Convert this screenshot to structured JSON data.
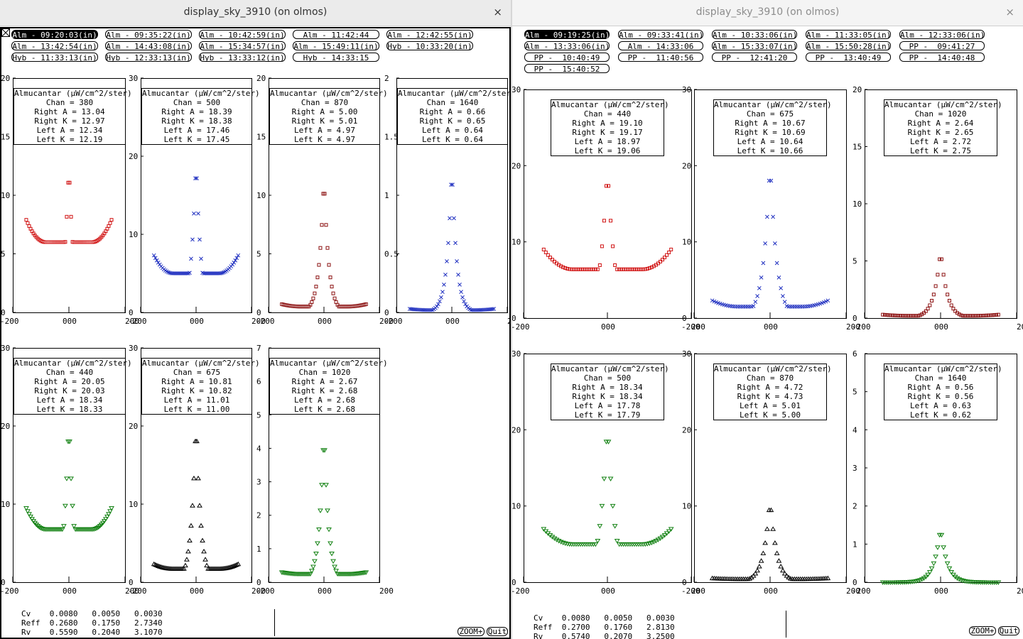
{
  "windows": [
    {
      "title": "display_sky_3910 (on olmos)",
      "close_label": "×",
      "time_buttons": [
        {
          "label": "Alm - 09:20:03(in)",
          "selected": true
        },
        {
          "label": "Alm - 09:35:22(in)"
        },
        {
          "label": "Alm - 10:42:59(in)"
        },
        {
          "label": "Alm - 11:42:44"
        },
        {
          "label": "Alm - 12:42:55(in)"
        },
        {
          "label": "Alm - 13:42:54(in)"
        },
        {
          "label": "Alm - 14:43:08(in)"
        },
        {
          "label": "Alm - 15:34:57(in)"
        },
        {
          "label": "Alm - 15:49:11(in)"
        },
        {
          "label": "Hyb - 10:33:20(in)"
        },
        {
          "label": "Hyb - 11:33:13(in)"
        },
        {
          "label": "Hyb - 12:33:13(in)"
        },
        {
          "label": "Hyb - 13:33:12(in)"
        },
        {
          "label": "Hyb - 14:33:15"
        }
      ],
      "plots": [
        {
          "chan": "380",
          "right_a": "13.04",
          "right_k": "12.97",
          "left_a": "12.34",
          "left_k": "12.19",
          "yticks": [
            "0",
            "5",
            "10",
            "15",
            "20"
          ],
          "ymax": 20,
          "peak": 12.9,
          "edge": 7.9,
          "trough": 6.0,
          "marker": "square",
          "color": "#d01010",
          "info_title": "Almucantar (µW/cm^2/ster)"
        },
        {
          "chan": "500",
          "right_a": "18.39",
          "right_k": "18.38",
          "left_a": "17.46",
          "left_k": "17.45",
          "yticks": [
            "0",
            "10",
            "20",
            "30"
          ],
          "ymax": 30,
          "peak": 20.0,
          "edge": 7.3,
          "trough": 5.0,
          "marker": "x",
          "color": "#2030c0",
          "info_title": "Almucantar (µW/cm^2/ster)"
        },
        {
          "chan": "870",
          "right_a": "5.00",
          "right_k": "5.01",
          "left_a": "4.97",
          "left_k": "4.97",
          "yticks": [
            "0",
            "5",
            "10",
            "15",
            "20"
          ],
          "ymax": 20,
          "peak": 11.8,
          "edge": 0.7,
          "trough": 0.5,
          "marker": "square",
          "color": "#8b1010",
          "info_title": "Almucantar (µW/cm^2/ster)"
        },
        {
          "chan": "1640",
          "right_a": "0.66",
          "right_k": "0.65",
          "left_a": "0.64",
          "left_k": "0.64",
          "yticks": [
            "0",
            "0.5",
            "1",
            "1.5",
            "2"
          ],
          "ymax": 2,
          "peak": 1.27,
          "edge": 0.03,
          "trough": 0.02,
          "marker": "x",
          "color": "#2030c0",
          "info_title": "Almucantar (µW/cm^2/ster)"
        },
        {
          "chan": "440",
          "right_a": "20.05",
          "right_k": "20.03",
          "left_a": "18.34",
          "left_k": "18.33",
          "yticks": [
            "0",
            "10",
            "20",
            "30"
          ],
          "ymax": 30,
          "peak": 21.0,
          "edge": 9.5,
          "trough": 6.8,
          "marker": "tri_down",
          "color": "#108010",
          "info_title": "Almucantar (µW/cm^2/ster)"
        },
        {
          "chan": "675",
          "right_a": "10.81",
          "right_k": "10.82",
          "left_a": "11.01",
          "left_k": "11.00",
          "yticks": [
            "0",
            "10",
            "20",
            "30"
          ],
          "ymax": 30,
          "peak": 21.0,
          "edge": 2.3,
          "trough": 1.7,
          "marker": "tri_up",
          "color": "#000000",
          "info_title": "Almucantar (µW/cm^2/ster)"
        },
        {
          "chan": "1020",
          "right_a": "2.67",
          "right_k": "2.68",
          "left_a": "2.68",
          "left_k": "2.68",
          "yticks": [
            "0",
            "1",
            "2",
            "3",
            "4",
            "5",
            "6",
            "7"
          ],
          "ymax": 7,
          "peak": 4.6,
          "edge": 0.3,
          "trough": 0.25,
          "marker": "tri_down",
          "color": "#108010",
          "info_title": "Almucantar (µW/cm^2/ster)"
        }
      ],
      "xticks": [
        "-200",
        "000",
        "200"
      ],
      "stats_text": "Cv    0.0080   0.0050   0.0030\nReff  0.2680   0.1750   2.7340\nRv    0.5590   0.2040   3.1070",
      "zoom_label": "ZOOM+",
      "quit_label": "Quit"
    },
    {
      "title": "display_sky_3910 (on olmos)",
      "close_label": "×",
      "time_buttons": [
        {
          "label": "Alm - 09:19:25(in)",
          "selected": true
        },
        {
          "label": "Alm - 09:33:41(in)"
        },
        {
          "label": "Alm - 10:33:06(in)"
        },
        {
          "label": "Alm - 11:33:05(in)"
        },
        {
          "label": "Alm - 12:33:06(in)"
        },
        {
          "label": "Alm - 13:33:06(in)"
        },
        {
          "label": "Alm - 14:33:06"
        },
        {
          "label": "Alm - 15:33:07(in)"
        },
        {
          "label": "Alm - 15:50:28(in)"
        },
        {
          "label": "PP -  09:41:27"
        },
        {
          "label": "PP -  10:40:49"
        },
        {
          "label": "PP -  11:40:56"
        },
        {
          "label": "PP -  12:41:20"
        },
        {
          "label": "PP -  13:40:49"
        },
        {
          "label": "PP -  14:40:48"
        },
        {
          "label": "PP -  15:40:52"
        }
      ],
      "plots": [
        {
          "chan": "440",
          "right_a": "19.10",
          "right_k": "19.17",
          "left_a": "18.97",
          "left_k": "19.06",
          "yticks": [
            "0",
            "10",
            "20",
            "30"
          ],
          "ymax": 30,
          "peak": 20.2,
          "edge": 9.0,
          "trough": 6.4,
          "marker": "square",
          "color": "#d01010",
          "info_title": "Almucantar (µW/cm^2/ster)"
        },
        {
          "chan": "675",
          "right_a": "10.67",
          "right_k": "10.69",
          "left_a": "10.64",
          "left_k": "10.66",
          "yticks": [
            "0",
            "10",
            "20",
            "30"
          ],
          "ymax": 30,
          "peak": 21.0,
          "edge": 2.3,
          "trough": 1.5,
          "marker": "x",
          "color": "#2030c0",
          "info_title": "Almucantar (µW/cm^2/ster)"
        },
        {
          "chan": "1020",
          "right_a": "2.64",
          "right_k": "2.65",
          "left_a": "2.72",
          "left_k": "2.75",
          "yticks": [
            "0",
            "5",
            "10",
            "15",
            "20"
          ],
          "ymax": 20,
          "peak": 6.0,
          "edge": 0.3,
          "trough": 0.2,
          "marker": "square",
          "color": "#8b1010",
          "info_title": "Almucantar (µW/cm^2/ster)"
        },
        {
          "chan": "500",
          "right_a": "18.34",
          "right_k": "18.34",
          "left_a": "17.78",
          "left_k": "17.79",
          "yticks": [
            "0",
            "10",
            "20",
            "30"
          ],
          "ymax": 30,
          "peak": 21.5,
          "edge": 7.0,
          "trough": 5.0,
          "marker": "tri_down",
          "color": "#108010",
          "info_title": "Almucantar (µW/cm^2/ster)"
        },
        {
          "chan": "870",
          "right_a": "4.72",
          "right_k": "4.73",
          "left_a": "5.01",
          "left_k": "5.00",
          "yticks": [
            "0",
            "10",
            "20",
            "30"
          ],
          "ymax": 30,
          "peak": 11.0,
          "edge": 0.5,
          "trough": 0.4,
          "marker": "tri_up",
          "color": "#000000",
          "info_title": "Almucantar (µW/cm^2/ster)"
        },
        {
          "chan": "1640",
          "right_a": "0.56",
          "right_k": "0.56",
          "left_a": "0.63",
          "left_k": "0.62",
          "yticks": [
            "0",
            "1",
            "2",
            "3",
            "4",
            "5",
            "6"
          ],
          "ymax": 6,
          "peak": 1.45,
          "edge": 0.0,
          "trough": 0.0,
          "marker": "tri_down",
          "color": "#108010",
          "info_title": "Almucantar (µW/cm^2/ster)"
        }
      ],
      "xticks": [
        "-200",
        "000",
        "200"
      ],
      "stats_text": "Cv    0.0080   0.0050   0.0030\nReff  0.2700   0.1760   2.8130\nRv    0.5740   0.2070   3.2500",
      "zoom_label": "ZOOM+",
      "quit_label": "Quit"
    }
  ]
}
